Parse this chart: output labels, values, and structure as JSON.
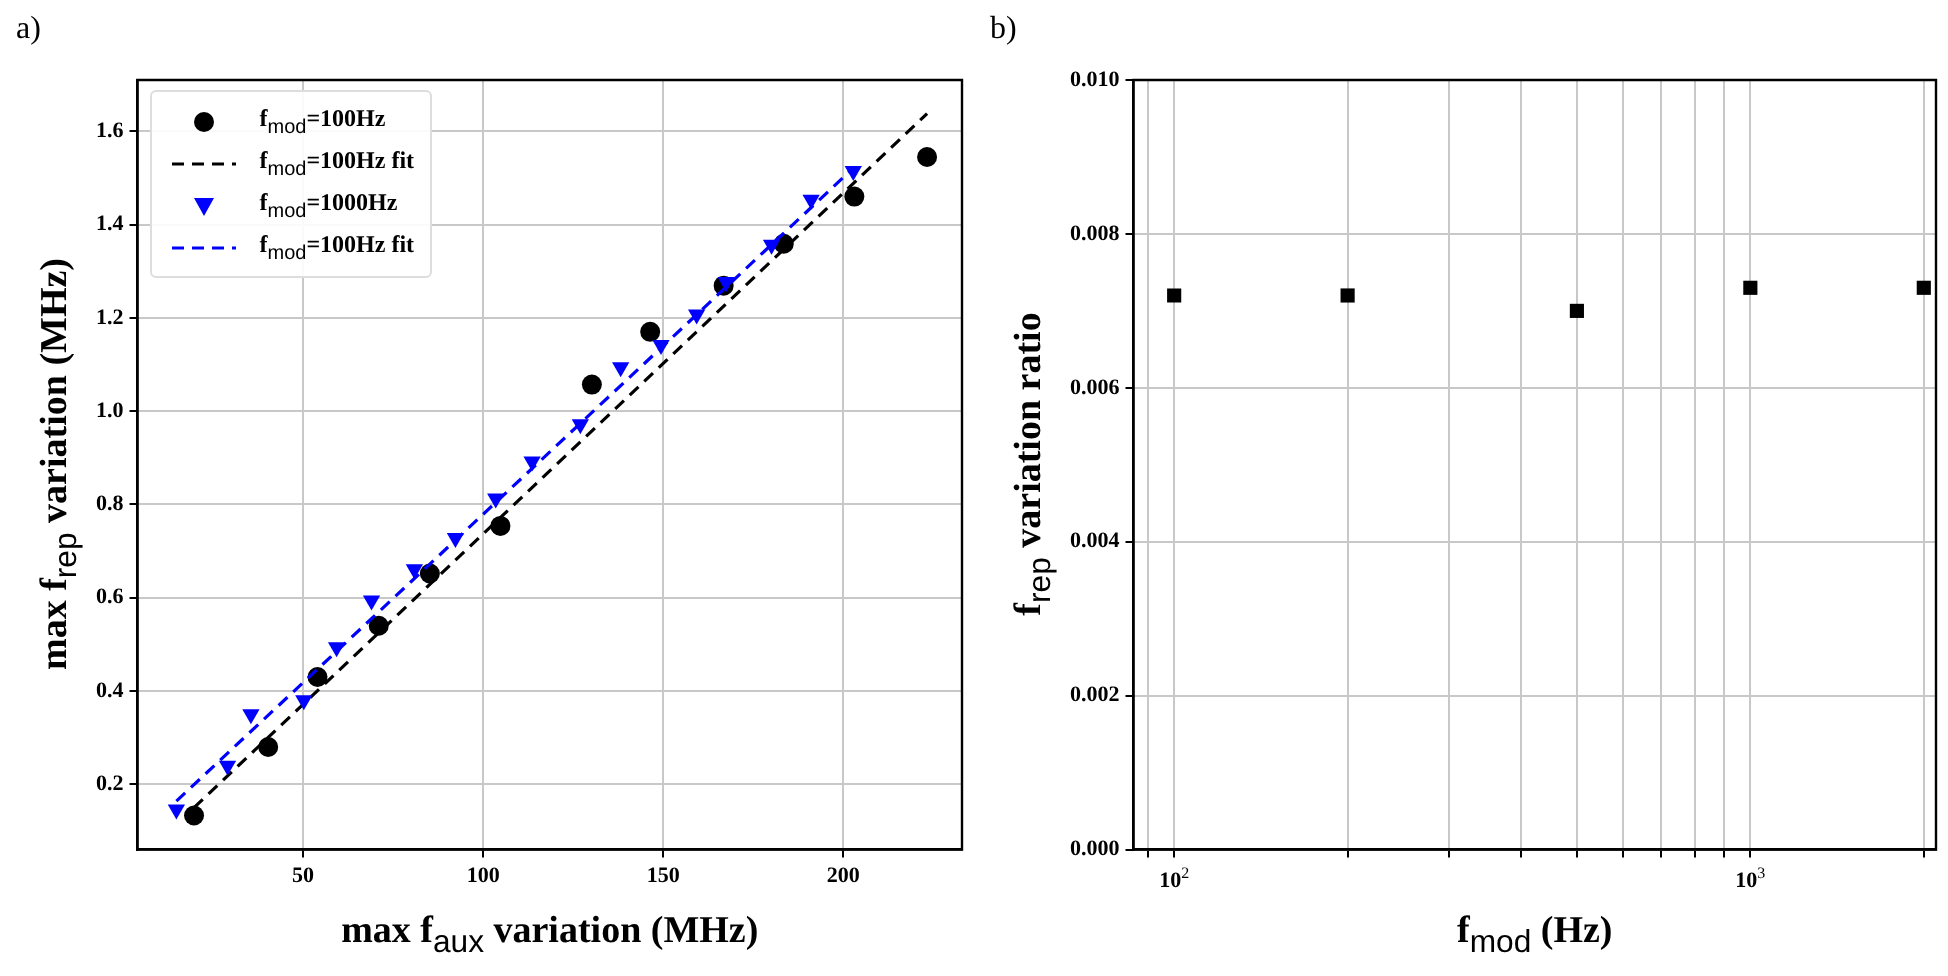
{
  "chart_data": [
    {
      "type": "scatter",
      "xlabel": "max f$_{aux}$ variation (MHz)",
      "ylabel": "max f$_{rep}$ variation (MHz)",
      "annotations": [
        "a)"
      ],
      "xlim": [
        4,
        233
      ],
      "ylim": [
        0.06,
        1.71
      ],
      "xticks": [
        50,
        100,
        150,
        200
      ],
      "yticks": [
        0.2,
        0.4,
        0.6,
        0.8,
        {
          "value": 1,
          "label": "1.0"
        },
        1.2,
        1.4,
        1.6
      ],
      "grid": true,
      "legend": "top left",
      "series": [
        {
          "name": "f$_{mod}$=100Hz",
          "color": "#000000",
          "marker": "circle",
          "x": [
            19.7,
            40.3,
            54,
            71,
            85.2,
            104.8,
            130.2,
            146.4,
            166.8,
            183.5,
            203.1,
            223.3
          ],
          "values": [
            0.133,
            0.28,
            0.43,
            0.54,
            0.652,
            0.754,
            1.057,
            1.17,
            1.269,
            1.359,
            1.46,
            1.545
          ]
        },
        {
          "name": "f$_{mod}$=100Hz fit",
          "type": "line",
          "color": "#000000",
          "marker": "none",
          "line_style": "dashed",
          "x": [
            19.7,
            223.3
          ],
          "values": [
            0.15,
            1.638
          ]
        },
        {
          "name": "f$_{mod}$=1000Hz",
          "color": "#0000ff",
          "marker": "triangle",
          "x": [
            14.8,
            29,
            35.5,
            50.2,
            59.3,
            69,
            80.9,
            92.3,
            103.5,
            113.6,
            127,
            138.2,
            149.4,
            159.3,
            167.5,
            180.1,
            191.1,
            202.8
          ],
          "values": [
            0.146,
            0.24,
            0.35,
            0.38,
            0.494,
            0.594,
            0.661,
            0.728,
            0.813,
            0.892,
            0.972,
            1.094,
            1.142,
            1.207,
            1.277,
            1.357,
            1.453,
            1.515
          ]
        },
        {
          "name": "f$_{mod}$=100Hz fit",
          "type": "line",
          "color": "#0000ff",
          "marker": "none",
          "line_style": "dashed",
          "x": [
            14.8,
            202.8
          ],
          "values": [
            0.164,
            1.521
          ]
        }
      ]
    },
    {
      "type": "scatter",
      "xlabel": "f$_{mod}$ (Hz)",
      "ylabel": "f$_{rep}$ variation ratio",
      "annotations": [
        "b)"
      ],
      "log": "x",
      "xlim": [
        85,
        2100
      ],
      "ylim": [
        0,
        0.01
      ],
      "xticks": [
        {
          "value": 90,
          "label": null
        },
        {
          "value": 100,
          "label": "10$^{2}$"
        },
        {
          "value": 200,
          "label": null
        },
        {
          "value": 300,
          "label": null
        },
        {
          "value": 400,
          "label": null
        },
        {
          "value": 500,
          "label": null
        },
        {
          "value": 600,
          "label": null
        },
        {
          "value": 700,
          "label": null
        },
        {
          "value": 800,
          "label": null
        },
        {
          "value": 900,
          "label": null
        },
        {
          "value": 1000,
          "label": "10$^{3}$"
        },
        {
          "value": 2000,
          "label": null
        }
      ],
      "yticks": [
        {
          "value": 0,
          "label": "0.000"
        },
        {
          "value": 0.002,
          "label": "0.002"
        },
        {
          "value": 0.004,
          "label": "0.004"
        },
        {
          "value": 0.006,
          "label": "0.006"
        },
        {
          "value": 0.008,
          "label": "0.008"
        },
        {
          "value": 0.01,
          "label": "0.010"
        }
      ],
      "grid": true,
      "series": [
        {
          "color": "#000000",
          "marker": "square",
          "x": [
            100,
            200,
            500,
            1000,
            2000
          ],
          "values": [
            0.0072,
            0.0072,
            0.007,
            0.0073,
            0.0073
          ]
        }
      ]
    }
  ]
}
